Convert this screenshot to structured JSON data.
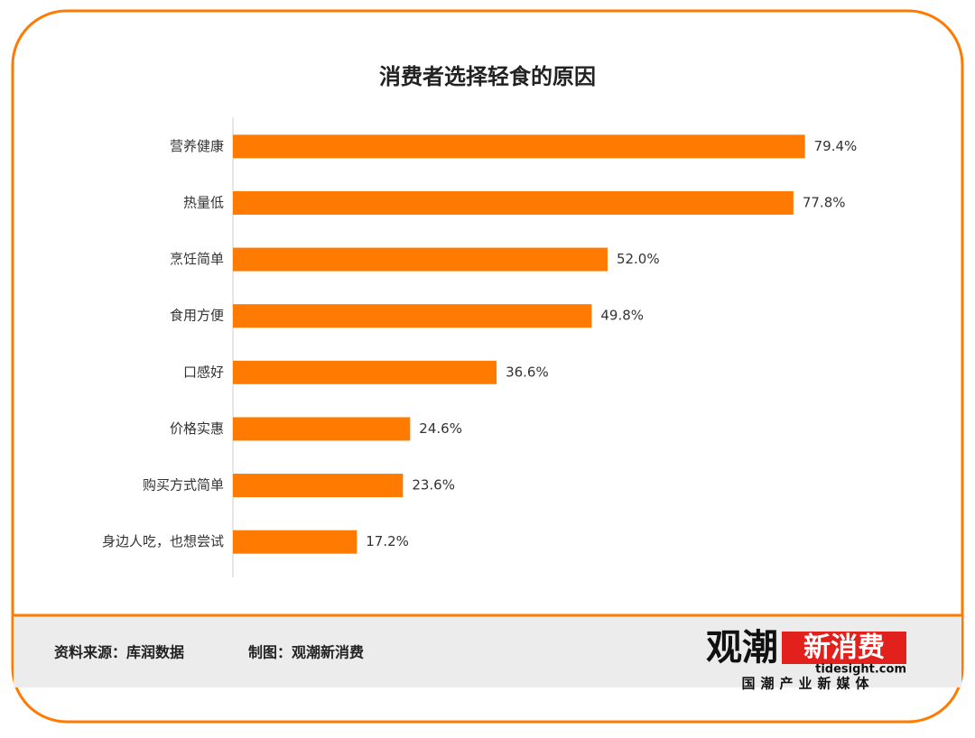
{
  "chart_data": {
    "type": "hbar",
    "title": "消费者选择轻食的原因",
    "categories": [
      "营养健康",
      "热量低",
      "烹饪简单",
      "食用方便",
      "口感好",
      "价格实惠",
      "购买方式简单",
      "身边人吃，也想尝试"
    ],
    "values": [
      79.4,
      77.8,
      52.0,
      49.8,
      36.6,
      24.6,
      23.6,
      17.2
    ],
    "value_labels": [
      "79.4%",
      "77.8%",
      "52.0%",
      "49.8%",
      "36.6%",
      "24.6%",
      "23.6%",
      "17.2%"
    ],
    "color": "#ff7a00",
    "xlim": [
      0,
      100
    ]
  },
  "footer": {
    "source": "资料来源：库润数据",
    "credit": "制图：观潮新消费",
    "logo": {
      "name_a": "观潮",
      "name_b": "新消费",
      "url": "tidesight.com",
      "tagline": "国潮产业新媒体"
    }
  }
}
